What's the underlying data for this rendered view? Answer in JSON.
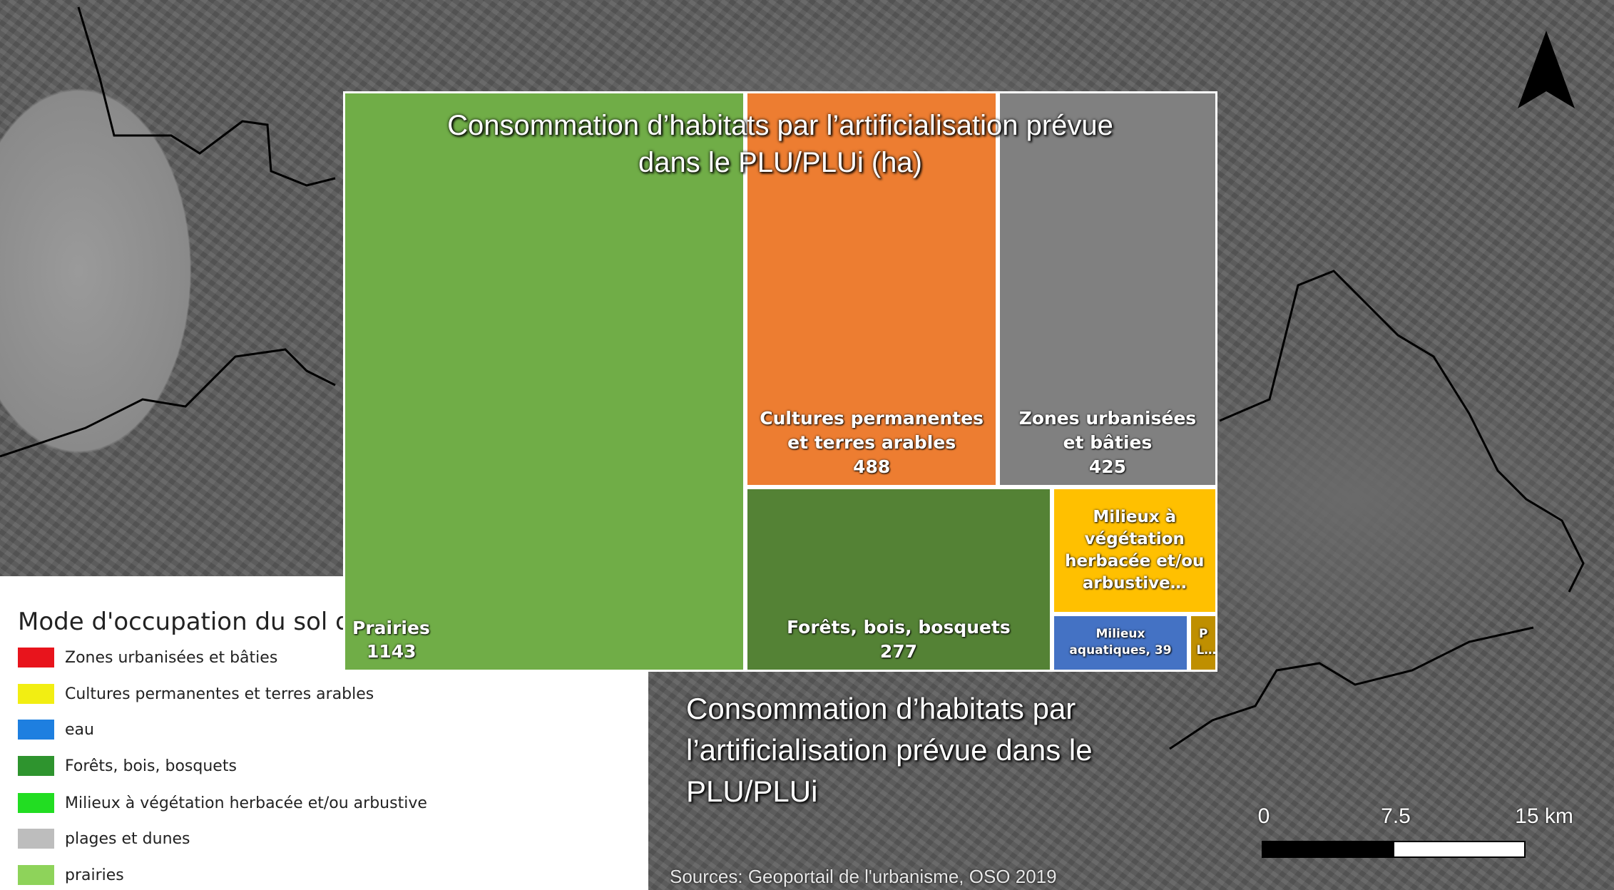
{
  "map": {
    "caption": "Consommation d’habitats par l’artificialisation prévue dans le PLU/PLUi",
    "sources": "Sources: Geoportail de l'urbanisme, OSO 2019",
    "scale_labels": [
      "0",
      "7.5",
      "15 km"
    ]
  },
  "legend": {
    "title": "Mode d'occupation du sol da",
    "items": [
      {
        "label": "Zones urbanisées et bâties",
        "color": "#e8141c"
      },
      {
        "label": "Cultures permanentes et terres arables",
        "color": "#f2ee12"
      },
      {
        "label": "eau",
        "color": "#1e7fe0"
      },
      {
        "label": "Forêts, bois, bosquets",
        "color": "#2e942e"
      },
      {
        "label": "Milieux à végétation herbacée et/ou arbustive",
        "color": "#22dd22"
      },
      {
        "label": "plages et dunes",
        "color": "#bdbdbd"
      },
      {
        "label": "prairies",
        "color": "#8ed35a"
      }
    ]
  },
  "chart_data": {
    "type": "treemap",
    "title": "Consommation d’habitats par l’artificialisation prévue dans le PLU/PLUi (ha)",
    "categories": [
      "Prairies",
      "Cultures permanentes et terres arables",
      "Zones urbanisées et bâties",
      "Forêts, bois, bosquets",
      "Milieux à végétation herbacée et/ou arbustive…",
      "Milieux aquatiques,",
      "P L…"
    ],
    "values": [
      1143,
      488,
      425,
      277,
      103,
      39,
      8
    ],
    "value_labels": [
      "1143",
      "488",
      "425",
      "277",
      null,
      "39",
      null
    ],
    "colors": [
      "#70ad47",
      "#ed7d31",
      "#808080",
      "#548235",
      "#ffc000",
      "#4472c4",
      "#bf8f00"
    ]
  }
}
